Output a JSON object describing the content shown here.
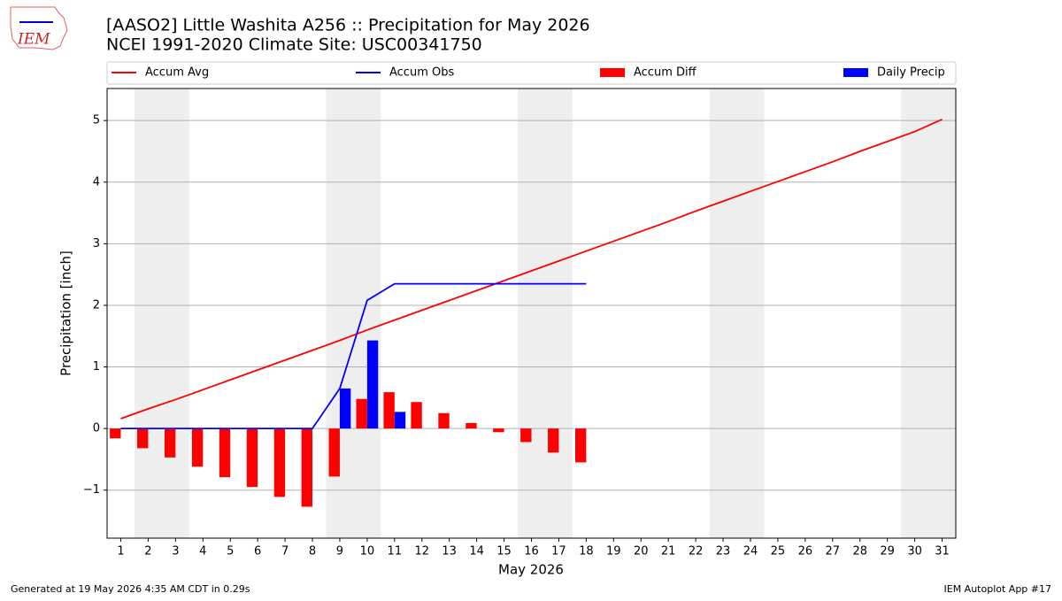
{
  "chart_data": {
    "type": "bar_line",
    "title": "[AASO2] Little Washita A256 :: Precipitation for May 2026",
    "subtitle": "NCEI 1991-2020 Climate Site: USC00341750",
    "xlabel": "May 2026",
    "ylabel": "Precipitation [inch]",
    "logo_text": "IEM",
    "footer_left": "Generated at 19 May 2026 4:35 AM CDT in 0.29s",
    "footer_right": "IEM Autoplot App #17",
    "categories": [
      "1",
      "2",
      "3",
      "4",
      "5",
      "6",
      "7",
      "8",
      "9",
      "10",
      "11",
      "12",
      "13",
      "14",
      "15",
      "16",
      "17",
      "18",
      "19",
      "20",
      "21",
      "22",
      "23",
      "24",
      "25",
      "26",
      "27",
      "28",
      "29",
      "30",
      "31"
    ],
    "shaded_spans": [
      [
        1.5,
        3.5
      ],
      [
        8.5,
        10.5
      ],
      [
        15.5,
        17.5
      ],
      [
        22.5,
        24.5
      ],
      [
        29.5,
        31.5
      ]
    ],
    "xlim": [
      0.5,
      31.5
    ],
    "ylim": [
      -1.78,
      5.52
    ],
    "yticks": [
      {
        "value": -1,
        "label": "−1"
      },
      0,
      1,
      2,
      3,
      4,
      5
    ],
    "grid": true,
    "series": [
      {
        "name": "Accum Avg",
        "kind": "line",
        "color": "#ff0000",
        "values": [
          0.16,
          0.32,
          0.47,
          0.63,
          0.79,
          0.95,
          1.11,
          1.27,
          1.43,
          1.6,
          1.76,
          1.92,
          2.08,
          2.24,
          2.4,
          2.56,
          2.72,
          2.88,
          3.04,
          3.2,
          3.36,
          3.53,
          3.69,
          3.85,
          4.01,
          4.17,
          4.33,
          4.5,
          4.66,
          4.82,
          5.02
        ]
      },
      {
        "name": "Accum Obs",
        "kind": "line",
        "color": "#0000ff",
        "values": [
          0,
          0,
          0,
          0,
          0,
          0,
          0,
          0,
          0.65,
          2.08,
          2.35,
          2.35,
          2.35,
          2.35,
          2.35,
          2.35,
          2.35,
          2.35,
          null,
          null,
          null,
          null,
          null,
          null,
          null,
          null,
          null,
          null,
          null,
          null,
          null
        ]
      },
      {
        "name": "Accum Diff",
        "kind": "bar",
        "color": "#ff0000",
        "values": [
          -0.16,
          -0.32,
          -0.47,
          -0.62,
          -0.79,
          -0.95,
          -1.11,
          -1.27,
          -0.78,
          0.48,
          0.59,
          0.43,
          0.25,
          0.09,
          -0.06,
          -0.22,
          -0.39,
          -0.55,
          null,
          null,
          null,
          null,
          null,
          null,
          null,
          null,
          null,
          null,
          null,
          null,
          null
        ]
      },
      {
        "name": "Daily Precip",
        "kind": "bar",
        "color": "#0000ff",
        "values": [
          0,
          0,
          0,
          0,
          0,
          0,
          0,
          0,
          0.65,
          1.43,
          0.27,
          0,
          0,
          0,
          0,
          0,
          0,
          0,
          null,
          null,
          null,
          null,
          null,
          null,
          null,
          null,
          null,
          null,
          null,
          null,
          null
        ]
      }
    ]
  }
}
